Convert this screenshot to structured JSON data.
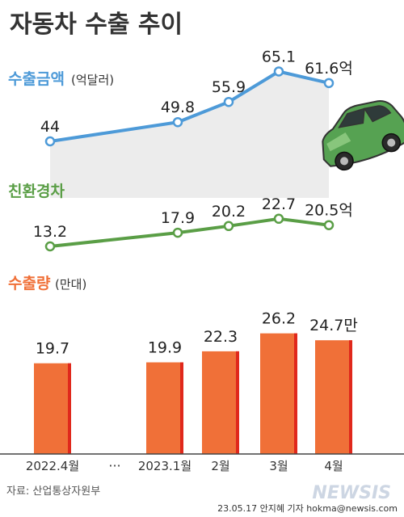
{
  "title": "자동차 수출 추이",
  "colors": {
    "background": "#ffffff",
    "area": "#ececec",
    "export_value": "#4d9ad8",
    "eco": "#5a9e46",
    "export_volume": "#f07038",
    "export_volume_shadow": "#e0281c",
    "axis": "#444444",
    "title": "#333333",
    "source": "#555555",
    "watermark": "#cdd6e3"
  },
  "car_icon": "green-car-illustration",
  "chart_data": [
    {
      "type": "line",
      "legend_label": "수출금액",
      "legend_unit": "(억달러)",
      "x": [
        "2022.4월",
        "2023.1월",
        "2월",
        "3월",
        "4월"
      ],
      "values": [
        44,
        49.8,
        55.9,
        65.1,
        61.6
      ],
      "value_labels": [
        "44",
        "49.8",
        "55.9",
        "65.1",
        "61.6억"
      ]
    },
    {
      "type": "line",
      "legend_label": "친환경차",
      "x": [
        "2022.4월",
        "2023.1월",
        "2월",
        "3월",
        "4월"
      ],
      "values": [
        13.2,
        17.9,
        20.2,
        22.7,
        20.5
      ],
      "value_labels": [
        "13.2",
        "17.9",
        "20.2",
        "22.7",
        "20.5억"
      ]
    },
    {
      "type": "bar",
      "legend_label": "수출량",
      "legend_unit": "(만대)",
      "categories": [
        "2022.4월",
        "2023.1월",
        "2월",
        "3월",
        "4월"
      ],
      "values": [
        19.7,
        19.9,
        22.3,
        26.2,
        24.7
      ],
      "value_labels": [
        "19.7",
        "19.9",
        "22.3",
        "26.2",
        "24.7만"
      ],
      "axis_break": "···"
    }
  ],
  "footer": {
    "source": "자료: 산업통상자원부",
    "credit": "23.05.17 안지혜 기자 hokma@newsis.com",
    "watermark": "NEWSIS"
  }
}
